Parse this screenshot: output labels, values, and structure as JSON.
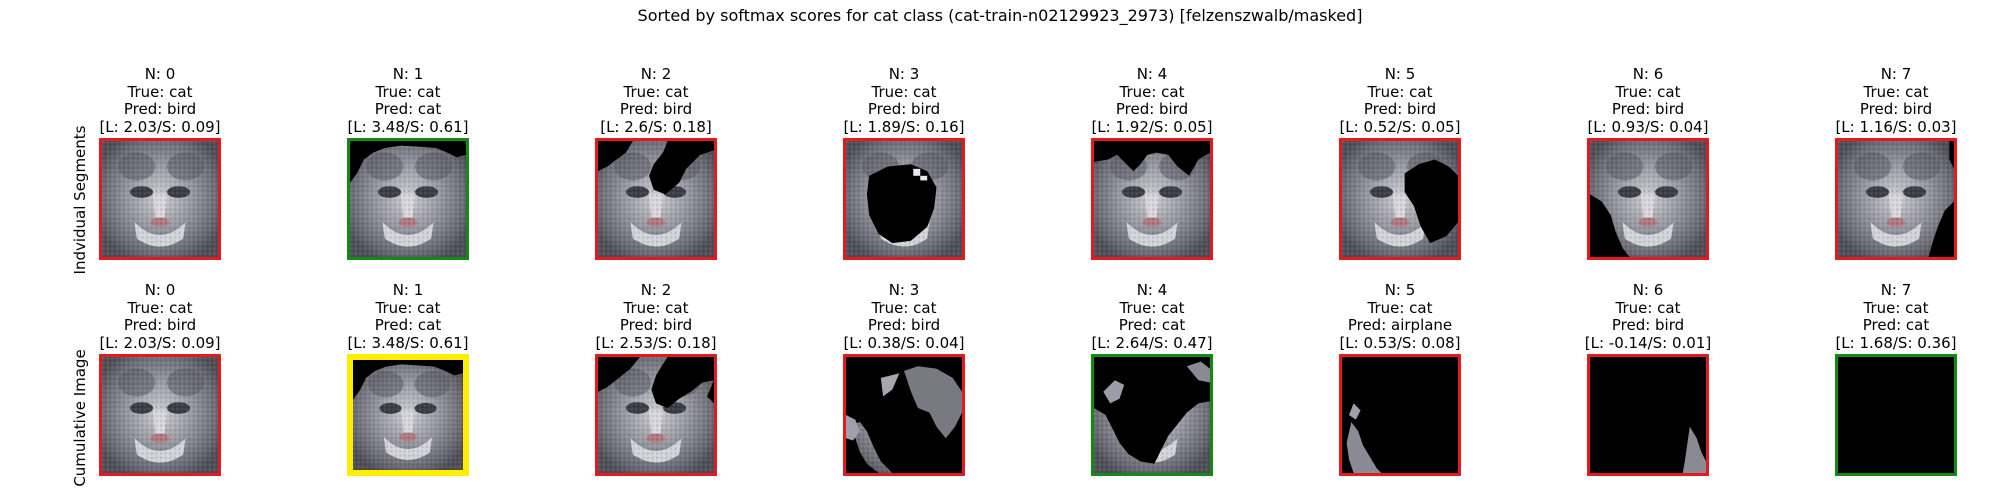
{
  "title": "Sorted by softmax scores for cat class (cat-train-n02129923_2973) [felzenszwalb/masked]",
  "colors": {
    "red": "#e41a1c",
    "green": "#138a13",
    "yellow": "#ffee00",
    "black": "#000000"
  },
  "rows": [
    {
      "label": "Indvidual Segments",
      "cells": [
        {
          "n": "N: 0",
          "truth": "True: cat",
          "pred": "Pred: bird",
          "score": "[L: 2.03/S: 0.09]",
          "border": "red",
          "mask": "none"
        },
        {
          "n": "N: 1",
          "truth": "True: cat",
          "pred": "Pred: cat",
          "score": "[L: 3.48/S: 0.61]",
          "border": "green",
          "mask": "corners_top"
        },
        {
          "n": "N: 2",
          "truth": "True: cat",
          "pred": "Pred: bird",
          "score": "[L: 2.6/S: 0.18]",
          "border": "red",
          "mask": "top_right_blob"
        },
        {
          "n": "N: 3",
          "truth": "True: cat",
          "pred": "Pred: bird",
          "score": "[L: 1.89/S: 0.16]",
          "border": "red",
          "mask": "center_hole"
        },
        {
          "n": "N: 4",
          "truth": "True: cat",
          "pred": "Pred: bird",
          "score": "[L: 1.92/S: 0.05]",
          "border": "red",
          "mask": "top_strip"
        },
        {
          "n": "N: 5",
          "truth": "True: cat",
          "pred": "Pred: bird",
          "score": "[L: 0.52/S: 0.05]",
          "border": "red",
          "mask": "right_side"
        },
        {
          "n": "N: 6",
          "truth": "True: cat",
          "pred": "Pred: bird",
          "score": "[L: 0.93/S: 0.04]",
          "border": "red",
          "mask": "left_bottom"
        },
        {
          "n": "N: 7",
          "truth": "True: cat",
          "pred": "Pred: bird",
          "score": "[L: 1.16/S: 0.03]",
          "border": "red",
          "mask": "bottom_right"
        }
      ]
    },
    {
      "label": "Cumulative Image",
      "cells": [
        {
          "n": "N: 0",
          "truth": "True: cat",
          "pred": "Pred: bird",
          "score": "[L: 2.03/S: 0.09]",
          "border": "red",
          "mask": "none"
        },
        {
          "n": "N: 1",
          "truth": "True: cat",
          "pred": "Pred: cat",
          "score": "[L: 3.48/S: 0.61]",
          "border": "yellow",
          "mask": "corners_top"
        },
        {
          "n": "N: 2",
          "truth": "True: cat",
          "pred": "Pred: bird",
          "score": "[L: 2.53/S: 0.18]",
          "border": "red",
          "mask": "cum2"
        },
        {
          "n": "N: 3",
          "truth": "True: cat",
          "pred": "Pred: bird",
          "score": "[L: 0.38/S: 0.04]",
          "border": "red",
          "mask": "cum3"
        },
        {
          "n": "N: 4",
          "truth": "True: cat",
          "pred": "Pred: cat",
          "score": "[L: 2.64/S: 0.47]",
          "border": "green",
          "mask": "cum4"
        },
        {
          "n": "N: 5",
          "truth": "True: cat",
          "pred": "Pred: airplane",
          "score": "[L: 0.53/S: 0.08]",
          "border": "red",
          "mask": "cum5"
        },
        {
          "n": "N: 6",
          "truth": "True: cat",
          "pred": "Pred: bird",
          "score": "[L: -0.14/S: 0.01]",
          "border": "red",
          "mask": "cum6"
        },
        {
          "n": "N: 7",
          "truth": "True: cat",
          "pred": "Pred: cat",
          "score": "[L: 1.68/S: 0.36]",
          "border": "green",
          "mask": "all"
        }
      ]
    }
  ]
}
